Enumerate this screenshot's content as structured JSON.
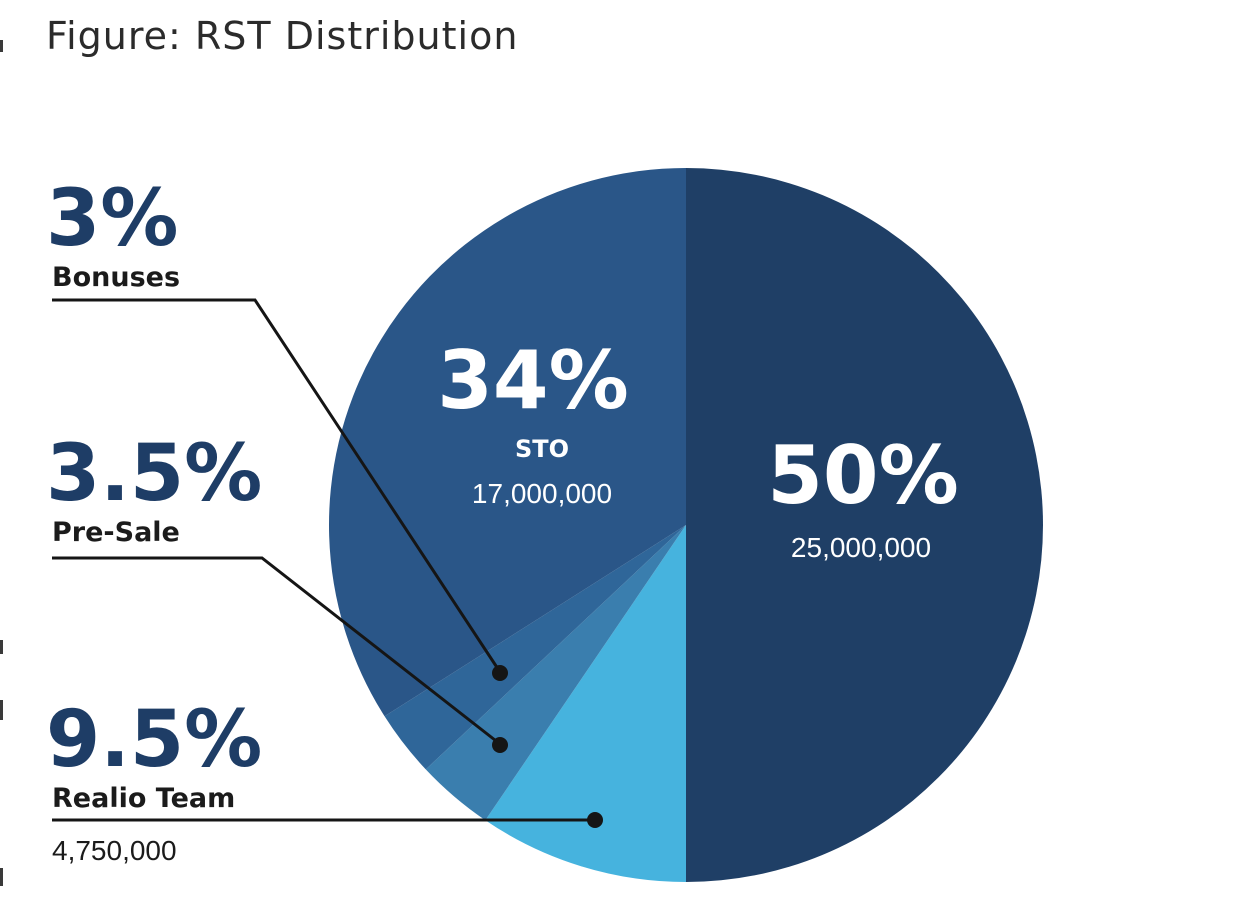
{
  "title": "Figure: RST Distribution",
  "chart_data": {
    "type": "pie",
    "title": "Figure: RST Distribution",
    "slices": [
      {
        "percent_label": "50%",
        "value": 50,
        "name": "",
        "amount": "25,000,000",
        "color": "#1f3f66"
      },
      {
        "percent_label": "9.5%",
        "value": 9.5,
        "name": "Realio Team",
        "amount": "4,750,000",
        "color": "#46b3de"
      },
      {
        "percent_label": "3.5%",
        "value": 3.5,
        "name": "Pre-Sale",
        "amount": "",
        "color": "#3a7eae"
      },
      {
        "percent_label": "3%",
        "value": 3,
        "name": "Bonuses",
        "amount": "",
        "color": "#2f6699"
      },
      {
        "percent_label": "34%",
        "value": 34,
        "name": "STO",
        "amount": "17,000,000",
        "color": "#2a5688"
      }
    ]
  }
}
